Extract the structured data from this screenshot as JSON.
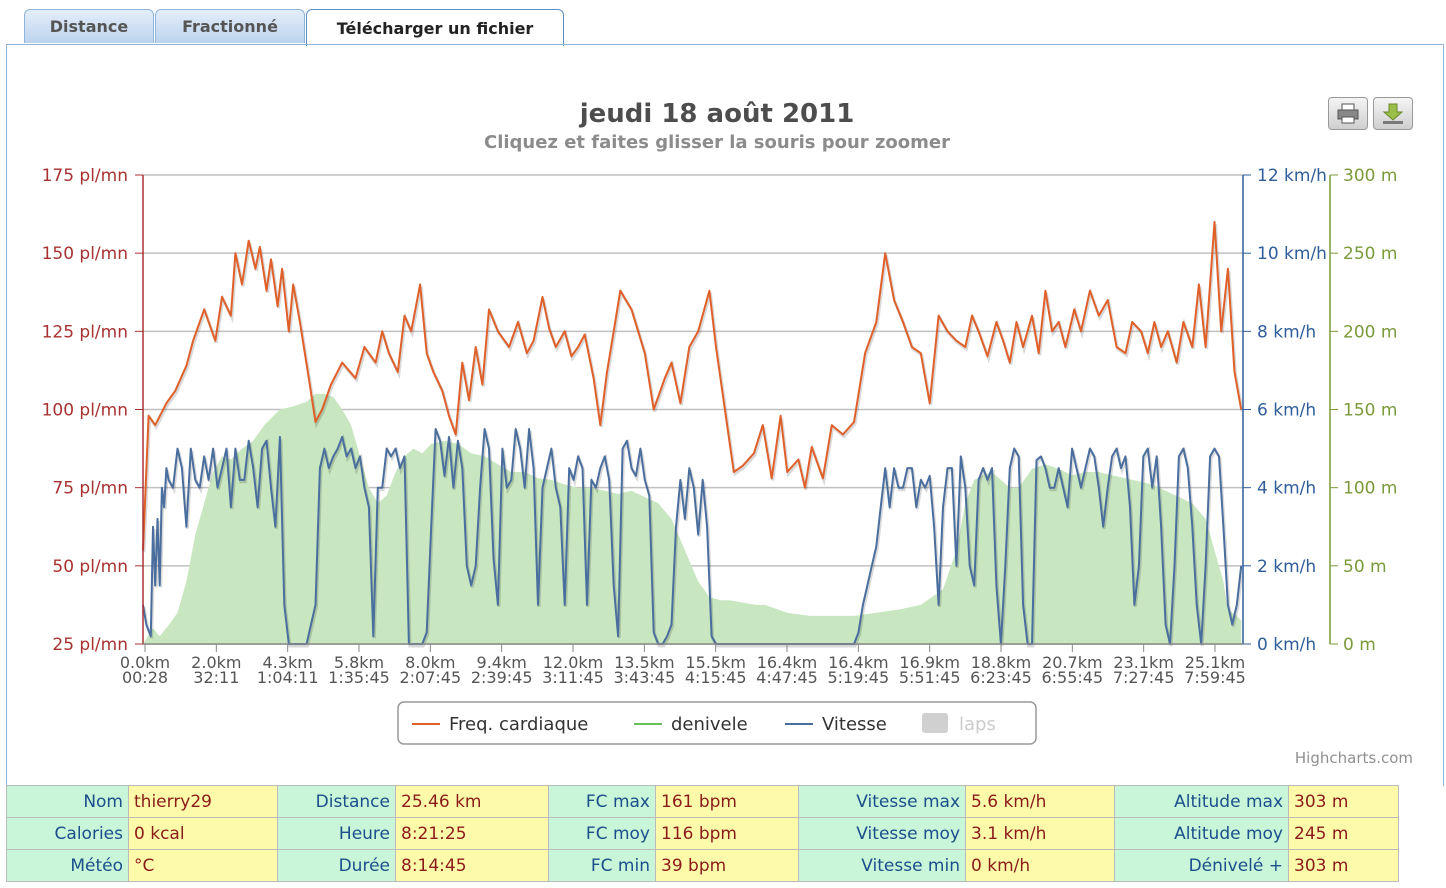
{
  "tabs": [
    {
      "label": "Distance",
      "active": false
    },
    {
      "label": "Fractionné",
      "active": false
    },
    {
      "label": "Télécharger un fichier",
      "active": true
    }
  ],
  "chart_data": {
    "type": "line",
    "title": "jeudi 18 août 2011",
    "subtitle": "Cliquez et faites glisser la souris pour zoomer",
    "credits": "Highcharts.com",
    "x_tick_labels": [
      [
        "0.0km",
        "00:28"
      ],
      [
        "2.0km",
        "32:11"
      ],
      [
        "4.3km",
        "1:04:11"
      ],
      [
        "5.8km",
        "1:35:45"
      ],
      [
        "8.0km",
        "2:07:45"
      ],
      [
        "9.4km",
        "2:39:45"
      ],
      [
        "12.0km",
        "3:11:45"
      ],
      [
        "13.5km",
        "3:43:45"
      ],
      [
        "15.5km",
        "4:15:45"
      ],
      [
        "16.4km",
        "4:47:45"
      ],
      [
        "16.4km",
        "5:19:45"
      ],
      [
        "16.9km",
        "5:51:45"
      ],
      [
        "18.8km",
        "6:23:45"
      ],
      [
        "20.7km",
        "6:55:45"
      ],
      [
        "23.1km",
        "7:27:45"
      ],
      [
        "25.1km",
        "7:59:45"
      ]
    ],
    "x_unit": "minutes",
    "xlim": [
      0.5,
      494.8
    ],
    "y_axes": {
      "hr": {
        "range": [
          25,
          175
        ],
        "ticks": [
          "175 pl/mn",
          "150 pl/mn",
          "125 pl/mn",
          "100 pl/mn",
          "75 pl/mn",
          "50 pl/mn",
          "25 pl/mn"
        ],
        "color": "#a83232"
      },
      "speed": {
        "range": [
          0,
          12
        ],
        "ticks": [
          "12 km/h",
          "10 km/h",
          "8 km/h",
          "6 km/h",
          "4 km/h",
          "2 km/h",
          "0 km/h"
        ],
        "color": "#2f5d9a"
      },
      "alt": {
        "range": [
          0,
          300
        ],
        "ticks": [
          "300 m",
          "250 m",
          "200 m",
          "150 m",
          "100 m",
          "50 m",
          "0 m"
        ],
        "color": "#7a9a3a"
      }
    },
    "legend": [
      "Freq. cardiaque",
      "denivele",
      "Vitesse",
      "laps"
    ],
    "legend_hidden": [
      false,
      false,
      false,
      true
    ],
    "colors": {
      "hr": "#e0602a",
      "alt_fill": "#c8e6c0",
      "alt_legend": "#6abf5a",
      "speed": "#4a6f9e",
      "laps": "#d0d0d0"
    },
    "series": [
      {
        "name": "Freq. cardiaque",
        "axis": "hr",
        "x": [
          0.5,
          3,
          6,
          11,
          15,
          20,
          23,
          28,
          33,
          36,
          40,
          42,
          45,
          48,
          51,
          53,
          56,
          58,
          61,
          63,
          66,
          68,
          71,
          75,
          78,
          81,
          85,
          90,
          96,
          100,
          105,
          108,
          111,
          115,
          118,
          121,
          125,
          128,
          131,
          135,
          138,
          141,
          144,
          147,
          150,
          153,
          156,
          160,
          165,
          169,
          173,
          176,
          180,
          183,
          186,
          190,
          193,
          196,
          199,
          203,
          206,
          209,
          212,
          215,
          220,
          226,
          230,
          235,
          238,
          242,
          246,
          250,
          255,
          258,
          262,
          266,
          270,
          275,
          279,
          283,
          287,
          290,
          295,
          298,
          301,
          306,
          310,
          315,
          320,
          325,
          330,
          334,
          338,
          342,
          346,
          350,
          354,
          358,
          362,
          366,
          370,
          373,
          376,
          380,
          384,
          387,
          390,
          393,
          396,
          400,
          403,
          406,
          409,
          412,
          415,
          419,
          422,
          426,
          430,
          434,
          438,
          442,
          445,
          449,
          452,
          455,
          458,
          461,
          465,
          468,
          472,
          475,
          478,
          482,
          485,
          488,
          491,
          494
        ],
        "y": [
          55,
          98,
          95,
          102,
          106,
          114,
          122,
          132,
          122,
          136,
          130,
          150,
          140,
          154,
          145,
          152,
          138,
          148,
          133,
          145,
          125,
          140,
          128,
          110,
          96,
          100,
          108,
          115,
          110,
          120,
          115,
          125,
          118,
          112,
          130,
          125,
          140,
          118,
          112,
          106,
          98,
          92,
          115,
          103,
          120,
          108,
          132,
          125,
          120,
          128,
          118,
          122,
          136,
          126,
          120,
          125,
          117,
          120,
          124,
          110,
          95,
          112,
          125,
          138,
          132,
          118,
          100,
          110,
          115,
          102,
          120,
          125,
          138,
          120,
          100,
          80,
          82,
          86,
          95,
          78,
          98,
          80,
          84,
          75,
          88,
          78,
          95,
          92,
          96,
          118,
          128,
          150,
          135,
          128,
          120,
          118,
          102,
          130,
          125,
          122,
          120,
          130,
          125,
          117,
          128,
          122,
          115,
          128,
          120,
          130,
          118,
          138,
          125,
          128,
          120,
          132,
          125,
          138,
          130,
          135,
          120,
          118,
          128,
          125,
          118,
          128,
          120,
          125,
          115,
          128,
          120,
          140,
          120,
          160,
          125,
          145,
          112,
          100
        ]
      },
      {
        "name": "denivele",
        "axis": "alt",
        "type": "area",
        "x": [
          0.5,
          5,
          8,
          12,
          16,
          20,
          24,
          28,
          32,
          36,
          40,
          45,
          50,
          55,
          62,
          68,
          74,
          78,
          82,
          86,
          90,
          94,
          98,
          102,
          106,
          110,
          114,
          118,
          122,
          126,
          130,
          136,
          142,
          148,
          154,
          160,
          166,
          172,
          178,
          184,
          190,
          196,
          202,
          208,
          214,
          220,
          226,
          232,
          238,
          244,
          250,
          255,
          260,
          264,
          268,
          272,
          276,
          280,
          290,
          300,
          310,
          320,
          330,
          340,
          350,
          360,
          366,
          370,
          374,
          378,
          382,
          386,
          390,
          394,
          400,
          406,
          412,
          418,
          424,
          430,
          436,
          442,
          448,
          454,
          460,
          466,
          472,
          478,
          482,
          486,
          488,
          490,
          492,
          494
        ],
        "y": [
          0,
          10,
          5,
          12,
          20,
          40,
          70,
          90,
          110,
          120,
          118,
          125,
          130,
          140,
          150,
          152,
          155,
          160,
          160,
          158,
          150,
          140,
          120,
          100,
          90,
          95,
          110,
          120,
          125,
          122,
          128,
          130,
          128,
          122,
          120,
          115,
          110,
          110,
          106,
          105,
          102,
          100,
          100,
          98,
          96,
          98,
          94,
          90,
          80,
          60,
          40,
          30,
          28,
          28,
          27,
          26,
          25,
          25,
          20,
          18,
          18,
          18,
          20,
          22,
          25,
          35,
          60,
          90,
          105,
          108,
          110,
          105,
          100,
          100,
          112,
          115,
          112,
          108,
          110,
          110,
          108,
          106,
          104,
          102,
          98,
          94,
          90,
          80,
          60,
          40,
          22,
          20,
          18,
          15
        ]
      },
      {
        "name": "Vitesse",
        "axis": "speed",
        "x": [
          0.5,
          2,
          4,
          5,
          6,
          7,
          8,
          9,
          10,
          11,
          12,
          14,
          16,
          18,
          20,
          22,
          24,
          26,
          28,
          30,
          32,
          34,
          36,
          38,
          40,
          42,
          44,
          46,
          48,
          50,
          52,
          54,
          56,
          58,
          60,
          62,
          64,
          66,
          68,
          70,
          72,
          74,
          76,
          78,
          80,
          82,
          84,
          86,
          88,
          90,
          92,
          94,
          96,
          98,
          100,
          102,
          104,
          106,
          108,
          110,
          112,
          114,
          116,
          118,
          120,
          122,
          124,
          126,
          128,
          130,
          132,
          134,
          136,
          138,
          140,
          142,
          144,
          146,
          148,
          150,
          152,
          154,
          156,
          158,
          160,
          162,
          164,
          166,
          168,
          170,
          172,
          174,
          176,
          178,
          180,
          182,
          184,
          186,
          188,
          190,
          192,
          194,
          196,
          198,
          200,
          202,
          204,
          206,
          208,
          210,
          212,
          214,
          216,
          218,
          220,
          222,
          224,
          226,
          228,
          230,
          232,
          234,
          236,
          238,
          240,
          242,
          244,
          246,
          248,
          250,
          252,
          254,
          256,
          258,
          260,
          262,
          264,
          266,
          268,
          270,
          272,
          274,
          276,
          278,
          280,
          282,
          284,
          286,
          288,
          290,
          292,
          294,
          296,
          298,
          300,
          302,
          304,
          306,
          308,
          310,
          312,
          314,
          316,
          318,
          320,
          322,
          324,
          326,
          328,
          330,
          332,
          334,
          336,
          338,
          340,
          342,
          344,
          346,
          348,
          350,
          352,
          354,
          356,
          358,
          360,
          362,
          364,
          366,
          368,
          370,
          372,
          374,
          376,
          378,
          380,
          382,
          384,
          386,
          388,
          390,
          392,
          394,
          396,
          398,
          400,
          402,
          404,
          406,
          408,
          410,
          412,
          414,
          416,
          418,
          420,
          422,
          424,
          426,
          428,
          430,
          432,
          434,
          436,
          438,
          440,
          442,
          444,
          446,
          448,
          450,
          452,
          454,
          456,
          458,
          460,
          462,
          464,
          466,
          468,
          470,
          472,
          474,
          476,
          478,
          480,
          482,
          484,
          486,
          488,
          490,
          492,
          494
        ],
        "y": [
          1,
          0.5,
          0.2,
          3,
          1.5,
          3.2,
          1.5,
          4,
          3.5,
          4.5,
          4.2,
          4,
          5,
          4.5,
          3,
          5,
          4.2,
          4,
          4.8,
          4.2,
          5,
          4,
          4.5,
          5,
          3.5,
          5,
          4.2,
          4.2,
          5.2,
          4.5,
          3.5,
          5,
          5.2,
          4,
          3,
          5.3,
          1,
          0,
          0,
          0,
          0,
          0,
          0.5,
          1,
          4.5,
          5,
          4.5,
          4.8,
          5,
          5.3,
          4.8,
          5,
          4.5,
          4.8,
          4,
          3.5,
          0.2,
          4,
          4,
          5,
          4.8,
          5,
          4.5,
          4.8,
          0,
          0,
          0,
          0,
          0.3,
          3,
          5.5,
          5.2,
          4.3,
          5.3,
          4,
          5.2,
          4.5,
          2,
          1.5,
          2,
          4,
          5.5,
          5,
          2.2,
          1,
          5,
          4,
          4.2,
          5.5,
          5,
          4,
          5.5,
          4.5,
          1,
          4,
          4.5,
          5,
          4,
          3.5,
          1,
          4.5,
          4.2,
          4.8,
          4.5,
          1,
          4.2,
          4,
          4.5,
          4.8,
          4.2,
          1.5,
          0.2,
          5,
          5.2,
          4.5,
          4.3,
          5,
          4.2,
          3.8,
          0.3,
          0,
          0,
          0.2,
          0.5,
          3,
          4.2,
          3.2,
          4.5,
          4,
          2.8,
          4.2,
          3,
          0.2,
          0,
          0,
          0,
          0,
          0,
          0,
          0,
          0,
          0,
          0,
          0,
          0,
          0,
          0,
          0,
          0,
          0,
          0,
          0,
          0,
          0,
          0,
          0,
          0,
          0,
          0,
          0,
          0,
          0,
          0,
          0,
          0,
          0.3,
          1,
          1.5,
          2,
          2.5,
          3.5,
          4.5,
          3.5,
          4.5,
          4,
          4,
          4.5,
          4.5,
          3.5,
          4.2,
          4,
          4.3,
          3,
          1,
          3.5,
          4.5,
          4.5,
          2,
          4.8,
          4,
          2,
          1.5,
          4.2,
          4.5,
          4.2,
          4.5,
          1.5,
          0,
          2,
          4.5,
          5,
          4.8,
          1,
          0,
          0,
          4.7,
          4.8,
          4.5,
          4,
          4,
          4.5,
          4,
          3.5,
          5,
          4.5,
          4,
          4.5,
          5,
          4.8,
          4,
          3,
          4,
          4.8,
          5,
          4.5,
          4.8,
          3.5,
          1,
          2,
          4.8,
          5,
          4,
          4.8,
          3,
          0.5,
          0,
          2,
          4.8,
          5,
          4.5,
          3,
          1,
          0,
          2,
          4.8,
          5,
          4.8,
          3,
          1,
          0.5,
          1,
          2
        ]
      }
    ]
  },
  "stats": [
    [
      {
        "label": "Nom",
        "value": "thierry29"
      },
      {
        "label": "Distance",
        "value": "25.46 km"
      },
      {
        "label": "FC max",
        "value": "161 bpm"
      },
      {
        "label": "Vitesse max",
        "value": "5.6 km/h"
      },
      {
        "label": "Altitude max",
        "value": "303 m"
      }
    ],
    [
      {
        "label": "Calories",
        "value": "0 kcal"
      },
      {
        "label": "Heure",
        "value": "8:21:25"
      },
      {
        "label": "FC moy",
        "value": "116 bpm"
      },
      {
        "label": "Vitesse moy",
        "value": "3.1 km/h"
      },
      {
        "label": "Altitude moy",
        "value": "245 m"
      }
    ],
    [
      {
        "label": "Météo",
        "value": "°C"
      },
      {
        "label": "Durée",
        "value": "8:14:45"
      },
      {
        "label": "FC min",
        "value": "39 bpm"
      },
      {
        "label": "Vitesse min",
        "value": "0 km/h"
      },
      {
        "label": "Dénivelé +",
        "value": "303 m"
      }
    ]
  ]
}
